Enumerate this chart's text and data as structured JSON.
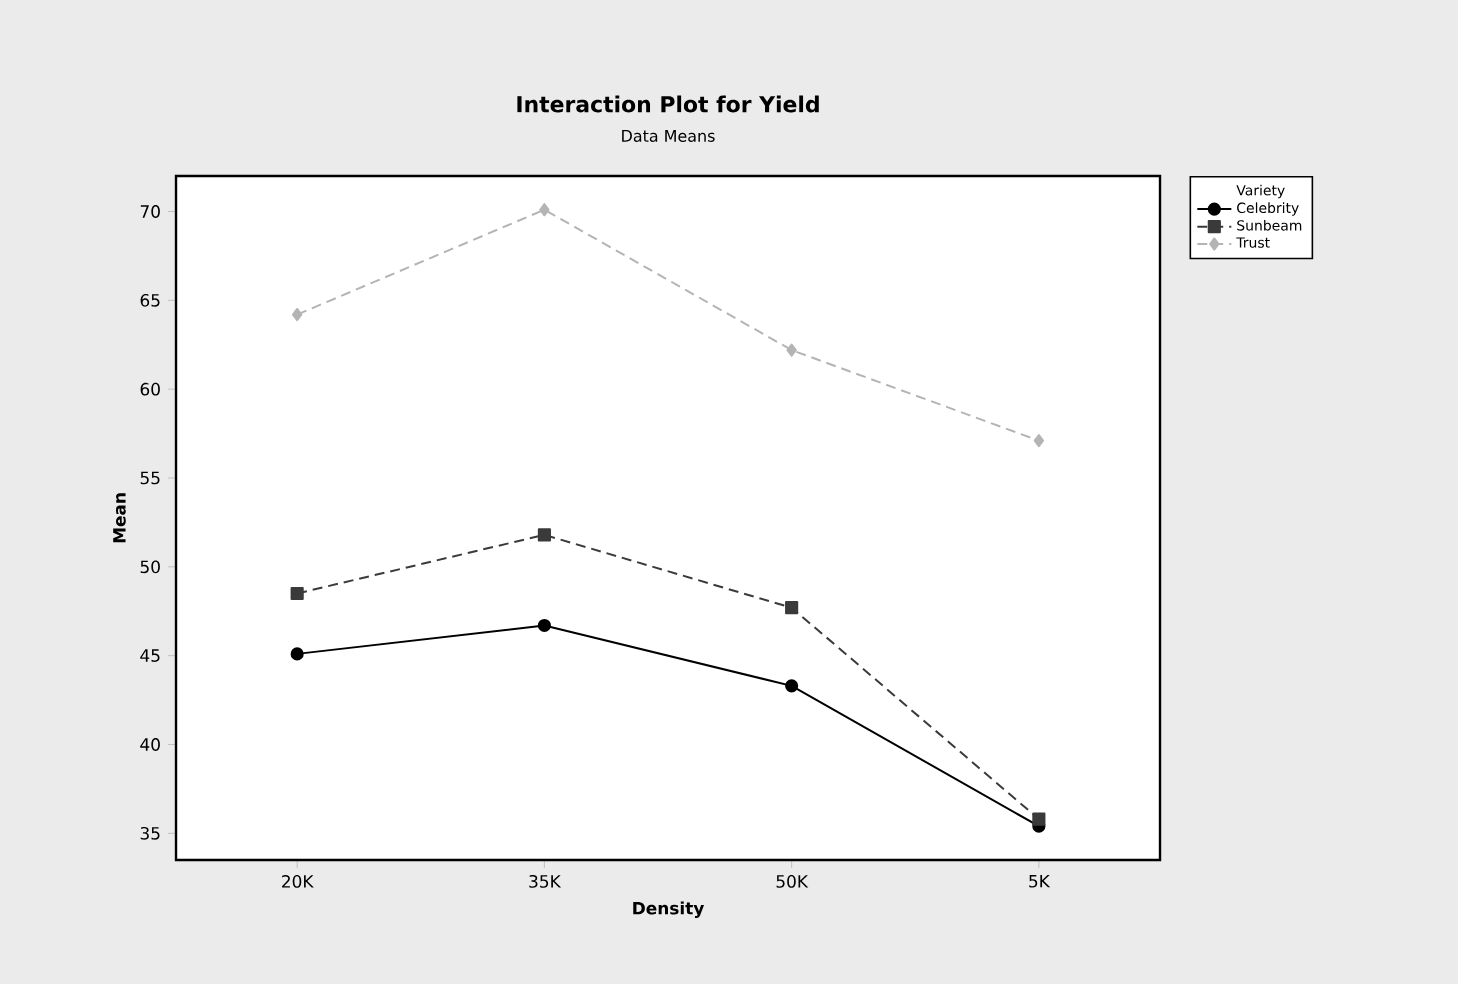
{
  "chart_data": {
    "type": "line",
    "title": "Interaction Plot for Yield",
    "subtitle": "Data Means",
    "xlabel": "Density",
    "ylabel": "Mean",
    "legend_title": "Variety",
    "categories": [
      "20K",
      "35K",
      "50K",
      "5K"
    ],
    "series": [
      {
        "name": "Celebrity",
        "color": "#000000",
        "marker": "circle",
        "line_style": "solid",
        "values": [
          45.1,
          46.7,
          43.3,
          35.4
        ]
      },
      {
        "name": "Sunbeam",
        "color": "#3a3a3a",
        "marker": "square",
        "line_style": "dashed",
        "values": [
          48.5,
          51.8,
          47.7,
          35.8
        ]
      },
      {
        "name": "Trust",
        "color": "#b4b4b4",
        "marker": "diamond",
        "line_style": "dashed",
        "values": [
          64.2,
          70.1,
          62.2,
          57.1
        ]
      }
    ],
    "ylim": [
      33.5,
      72
    ],
    "yticks": [
      35,
      40,
      45,
      50,
      55,
      60,
      65,
      70
    ],
    "grid": false,
    "legend": "top right"
  }
}
